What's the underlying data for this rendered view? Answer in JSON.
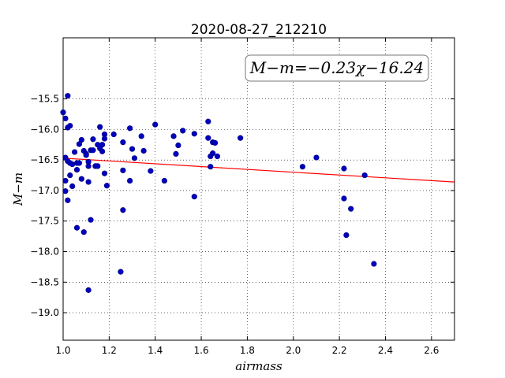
{
  "chart_data": {
    "type": "scatter",
    "title": "2020-08-27_212210",
    "xlabel": "airmass",
    "ylabel": "M−m",
    "xlim": [
      1.0,
      2.7
    ],
    "ylim": [
      -14.5,
      -19.45
    ],
    "y_inverted": true,
    "grid": true,
    "xticks": [
      1.0,
      1.2,
      1.4,
      1.6,
      1.8,
      2.0,
      2.2,
      2.4,
      2.6
    ],
    "xtick_labels": [
      "1.0",
      "1.2",
      "1.4",
      "1.6",
      "1.8",
      "2.0",
      "2.2",
      "2.4",
      "2.6"
    ],
    "yticks": [
      -15.5,
      -16.0,
      -16.5,
      -17.0,
      -17.5,
      -18.0,
      -18.5,
      -19.0
    ],
    "ytick_labels": [
      "−15.5",
      "−16.0",
      "−16.5",
      "−17.0",
      "−17.5",
      "−18.0",
      "−18.5",
      "−19.0"
    ],
    "annotation": "M−m=−0.23χ−16.24",
    "marker_color": "#0000bf",
    "fit_color": "#ff0000",
    "fit": {
      "slope": -0.23,
      "intercept": -16.24
    },
    "points": [
      [
        1.0,
        -15.72
      ],
      [
        1.01,
        -15.82
      ],
      [
        1.02,
        -15.45
      ],
      [
        1.02,
        -15.97
      ],
      [
        1.03,
        -15.94
      ],
      [
        1.01,
        -16.46
      ],
      [
        1.02,
        -16.52
      ],
      [
        1.03,
        -16.55
      ],
      [
        1.04,
        -16.57
      ],
      [
        1.05,
        -16.37
      ],
      [
        1.06,
        -16.55
      ],
      [
        1.07,
        -16.55
      ],
      [
        1.06,
        -16.66
      ],
      [
        1.07,
        -16.24
      ],
      [
        1.08,
        -16.17
      ],
      [
        1.09,
        -16.35
      ],
      [
        1.1,
        -16.4
      ],
      [
        1.1,
        -16.42
      ],
      [
        1.11,
        -16.53
      ],
      [
        1.11,
        -16.6
      ],
      [
        1.12,
        -16.34
      ],
      [
        1.13,
        -16.16
      ],
      [
        1.13,
        -16.34
      ],
      [
        1.14,
        -16.6
      ],
      [
        1.15,
        -16.6
      ],
      [
        1.15,
        -16.25
      ],
      [
        1.16,
        -16.31
      ],
      [
        1.16,
        -15.96
      ],
      [
        1.17,
        -16.36
      ],
      [
        1.17,
        -16.25
      ],
      [
        1.18,
        -16.08
      ],
      [
        1.18,
        -16.15
      ],
      [
        1.18,
        -16.72
      ],
      [
        1.19,
        -16.92
      ],
      [
        1.22,
        -16.08
      ],
      [
        1.01,
        -16.84
      ],
      [
        1.01,
        -17.01
      ],
      [
        1.02,
        -17.16
      ],
      [
        1.03,
        -16.75
      ],
      [
        1.04,
        -16.93
      ],
      [
        1.06,
        -17.61
      ],
      [
        1.08,
        -16.81
      ],
      [
        1.09,
        -17.68
      ],
      [
        1.11,
        -16.86
      ],
      [
        1.12,
        -17.48
      ],
      [
        1.11,
        -18.63
      ],
      [
        1.25,
        -18.33
      ],
      [
        1.26,
        -16.21
      ],
      [
        1.26,
        -16.67
      ],
      [
        1.26,
        -17.32
      ],
      [
        1.29,
        -15.98
      ],
      [
        1.3,
        -16.32
      ],
      [
        1.31,
        -16.47
      ],
      [
        1.29,
        -16.84
      ],
      [
        1.34,
        -16.11
      ],
      [
        1.35,
        -16.35
      ],
      [
        1.38,
        -16.68
      ],
      [
        1.4,
        -15.92
      ],
      [
        1.44,
        -16.84
      ],
      [
        1.48,
        -16.11
      ],
      [
        1.49,
        -16.4
      ],
      [
        1.5,
        -16.26
      ],
      [
        1.52,
        -16.02
      ],
      [
        1.57,
        -16.07
      ],
      [
        1.57,
        -17.1
      ],
      [
        1.63,
        -15.87
      ],
      [
        1.63,
        -16.14
      ],
      [
        1.64,
        -16.44
      ],
      [
        1.64,
        -16.61
      ],
      [
        1.65,
        -16.39
      ],
      [
        1.65,
        -16.21
      ],
      [
        1.66,
        -16.22
      ],
      [
        1.67,
        -16.44
      ],
      [
        1.77,
        -16.14
      ],
      [
        2.04,
        -16.61
      ],
      [
        2.1,
        -16.46
      ],
      [
        2.22,
        -16.64
      ],
      [
        2.22,
        -17.13
      ],
      [
        2.23,
        -17.73
      ],
      [
        2.25,
        -17.3
      ],
      [
        2.31,
        -16.75
      ],
      [
        2.35,
        -18.2
      ]
    ]
  }
}
